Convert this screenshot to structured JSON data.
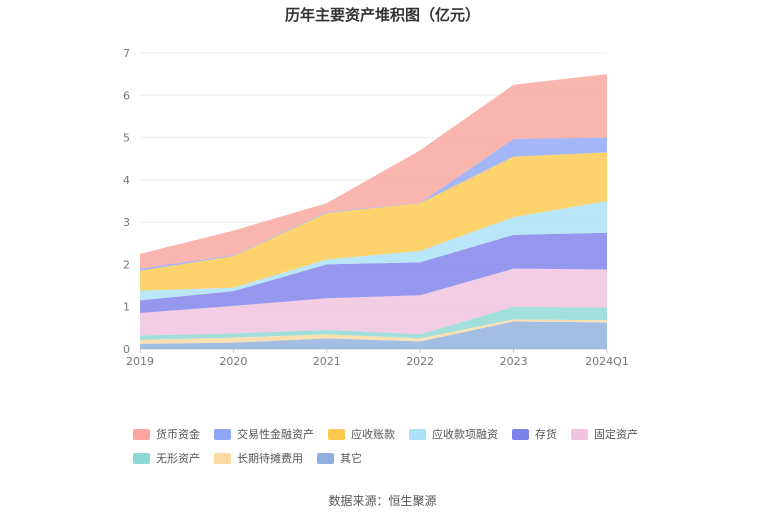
{
  "chart_data": {
    "type": "area",
    "stacked": true,
    "title": "历年主要资产堆积图（亿元）",
    "xlabel": "",
    "ylabel": "",
    "categories": [
      "2019",
      "2020",
      "2021",
      "2022",
      "2023",
      "2024Q1"
    ],
    "ylim": [
      0,
      7
    ],
    "yticks": [
      0,
      1,
      2,
      3,
      4,
      5,
      6,
      7
    ],
    "grid": true,
    "legend_position": "bottom",
    "series": [
      {
        "name": "其它",
        "color": "#8fb0dc",
        "values": [
          0.12,
          0.15,
          0.25,
          0.18,
          0.65,
          0.63
        ]
      },
      {
        "name": "长期待摊费用",
        "color": "#fcd9a0",
        "values": [
          0.1,
          0.12,
          0.1,
          0.07,
          0.05,
          0.05
        ]
      },
      {
        "name": "无形资产",
        "color": "#8dd8d2",
        "values": [
          0.1,
          0.1,
          0.1,
          0.1,
          0.3,
          0.3
        ]
      },
      {
        "name": "固定资产",
        "color": "#efc2de",
        "values": [
          0.53,
          0.65,
          0.75,
          0.92,
          0.9,
          0.9
        ]
      },
      {
        "name": "存货",
        "color": "#7e81ea",
        "values": [
          0.3,
          0.35,
          0.8,
          0.78,
          0.8,
          0.87
        ]
      },
      {
        "name": "应收款项融资",
        "color": "#aae1f7",
        "values": [
          0.23,
          0.08,
          0.12,
          0.27,
          0.42,
          0.75
        ]
      },
      {
        "name": "应收账款",
        "color": "#fdc94d",
        "values": [
          0.47,
          0.75,
          1.1,
          1.13,
          1.43,
          1.15
        ]
      },
      {
        "name": "交易性金融资产",
        "color": "#8ea6f6",
        "values": [
          0.05,
          0.02,
          0.02,
          0.01,
          0.42,
          0.35
        ]
      },
      {
        "name": "货币资金",
        "color": "#f9a59d",
        "values": [
          0.35,
          0.58,
          0.21,
          1.24,
          1.28,
          1.5
        ]
      }
    ]
  },
  "legend": {
    "row1": [
      {
        "name": "货币资金",
        "color": "#f9a59d"
      },
      {
        "name": "交易性金融资产",
        "color": "#8ea6f6"
      },
      {
        "name": "应收账款",
        "color": "#fdc94d"
      },
      {
        "name": "应收款项融资",
        "color": "#aae1f7"
      },
      {
        "name": "存货",
        "color": "#7e81ea"
      },
      {
        "name": "固定资产",
        "color": "#efc2de"
      }
    ],
    "row2": [
      {
        "name": "无形资产",
        "color": "#8dd8d2"
      },
      {
        "name": "长期待摊费用",
        "color": "#fcd9a0"
      },
      {
        "name": "其它",
        "color": "#8fb0dc"
      }
    ]
  },
  "source": "数据来源：恒生聚源"
}
